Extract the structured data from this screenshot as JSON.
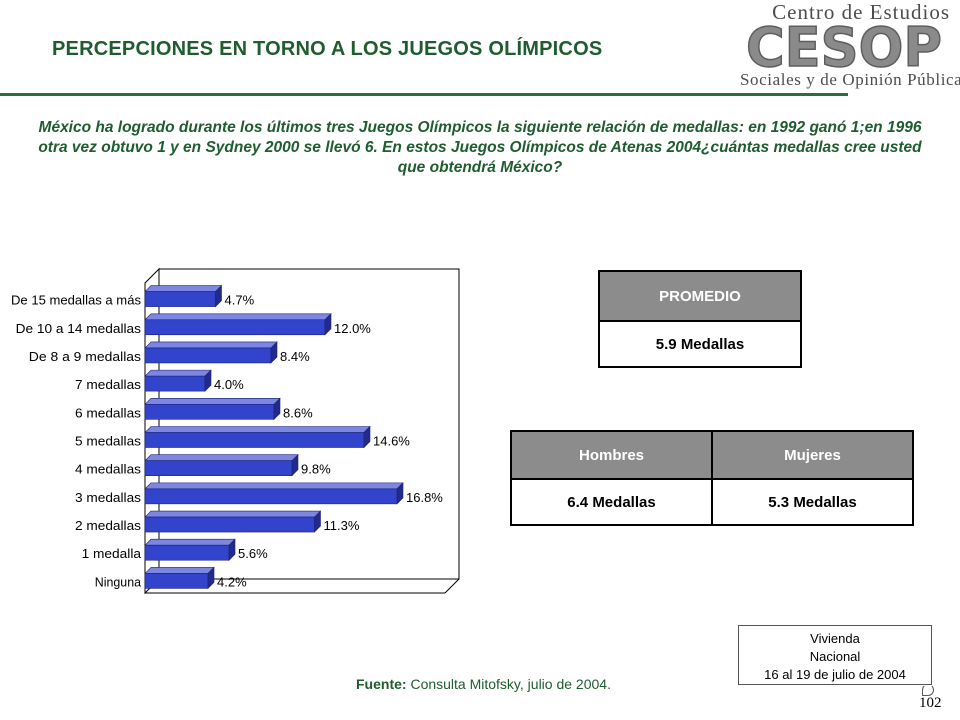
{
  "header": {
    "title": "PERCEPCIONES EN TORNO A LOS JUEGOS OLÍMPICOS"
  },
  "logo": {
    "top_text": "Centro de Estudios",
    "mark_text": "CESOP",
    "bottom_text": "Sociales y de Opinión Pública"
  },
  "question": "México ha logrado durante los últimos tres Juegos Olímpicos la siguiente relación de medallas: en 1992 ganó 1;en 1996 otra vez obtuvo 1 y en Sydney 2000 se llevó 6. En estos Juegos Olímpicos de Atenas 2004¿cuántas medallas cree usted que obtendrá México?",
  "chart_data": {
    "type": "bar",
    "orientation": "horizontal",
    "style": "3d",
    "categories": [
      "De 15 medallas a más",
      "De 10 a 14 medallas",
      "De 8 a 9 medallas",
      "7 medallas",
      "6 medallas",
      "5 medallas",
      "4 medallas",
      "3 medallas",
      "2 medallas",
      "1 medalla",
      "Ninguna"
    ],
    "values": [
      4.7,
      12.0,
      8.4,
      4.0,
      8.6,
      14.6,
      9.8,
      16.8,
      11.3,
      5.6,
      4.2
    ],
    "labels": [
      "4.7%",
      "12.0%",
      "8.4%",
      "4.0%",
      "8.6%",
      "14.6%",
      "9.8%",
      "16.8%",
      "11.3%",
      "5.6%",
      "4.2%"
    ],
    "xlim": [
      0,
      20
    ],
    "bar_color": "#3344cc",
    "grid": false
  },
  "promedio": {
    "header": "PROMEDIO",
    "value": "5.9 Medallas"
  },
  "genero": {
    "hombres_header": "Hombres",
    "mujeres_header": "Mujeres",
    "hombres_value": "6.4 Medallas",
    "mujeres_value": "5.3 Medallas"
  },
  "footer": {
    "fuente_label": "Fuente:",
    "fuente_text": " Consulta Mitofsky, julio de 2004.",
    "study_line1": "Vivienda",
    "study_line2": "Nacional",
    "study_line3": "16 al 19 de julio de 2004",
    "page_number": "102"
  },
  "colors": {
    "title_green": "#1f5c2e",
    "table_header_gray": "#8c8c8c",
    "bar_blue": "#3344cc"
  }
}
